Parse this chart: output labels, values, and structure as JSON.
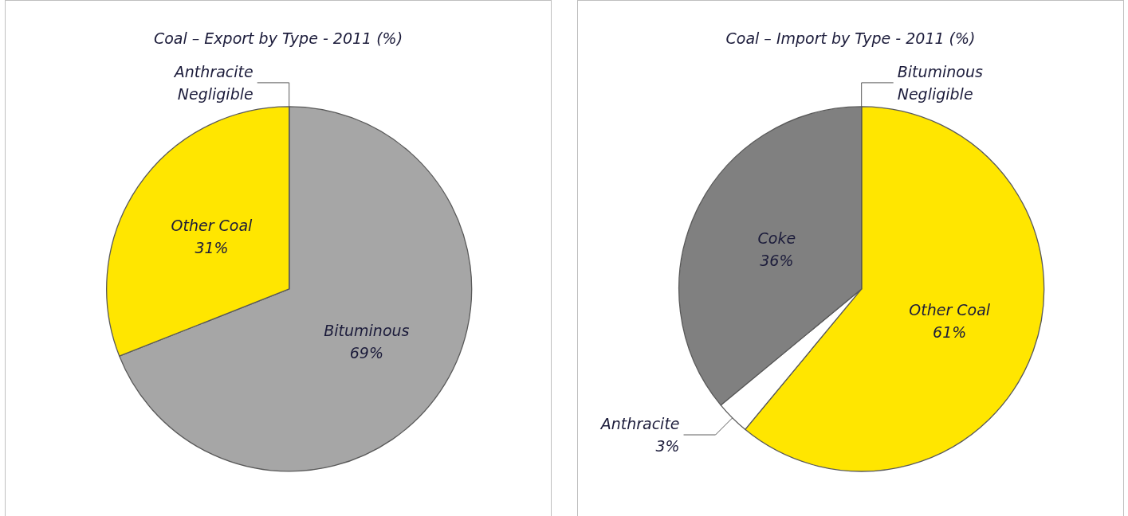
{
  "chart_data": [
    {
      "type": "pie",
      "title": "Coal – Export by Type - 2011 (%)",
      "categories": [
        "Bituminous",
        "Other Coal",
        "Anthracite"
      ],
      "values": [
        69,
        31,
        0
      ],
      "colors": [
        "#a6a6a6",
        "#ffe600",
        "#808080"
      ],
      "value_labels": [
        "69%",
        "31%",
        "Negligible"
      ]
    },
    {
      "type": "pie",
      "title": "Coal – Import by Type - 2011 (%)",
      "categories": [
        "Other Coal",
        "Anthracite",
        "Coke",
        "Bituminous"
      ],
      "values": [
        61,
        3,
        36,
        0
      ],
      "colors": [
        "#ffe600",
        "#ffffff",
        "#808080",
        "#a6a6a6"
      ],
      "value_labels": [
        "61%",
        "3%",
        "36%",
        "Negligible"
      ]
    }
  ]
}
